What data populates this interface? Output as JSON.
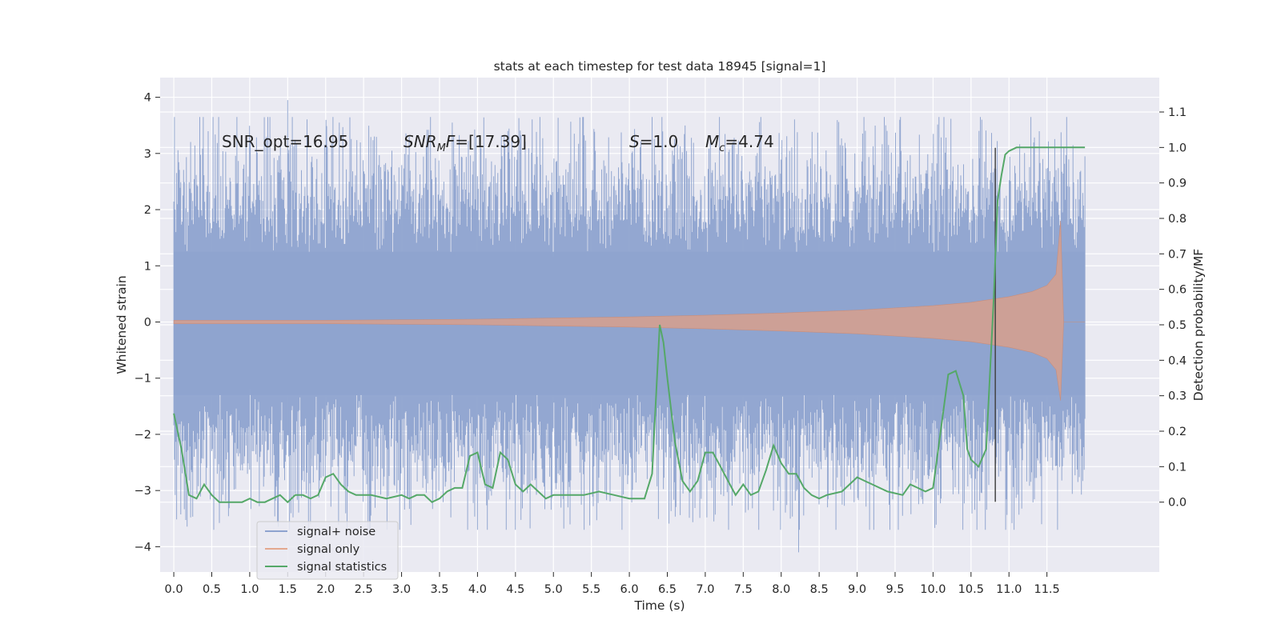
{
  "chart_data": {
    "type": "line",
    "title": "stats at each timestep for test data 18945 [signal=1]",
    "xlabel": "Time (s)",
    "ylabel": "Whitened strain",
    "ylabel_right": "Detection probability/MF",
    "xlim": [
      -0.18,
      12.98
    ],
    "ylim_left": [
      -4.45,
      4.35
    ],
    "ylim_right": [
      -0.197,
      1.197
    ],
    "x_ticks": [
      0.0,
      0.5,
      1.0,
      1.5,
      2.0,
      2.5,
      3.0,
      3.5,
      4.0,
      4.5,
      5.0,
      5.5,
      6.0,
      6.5,
      7.0,
      7.5,
      8.0,
      8.5,
      9.0,
      9.5,
      10.0,
      10.5,
      11.0,
      11.5
    ],
    "x_tick_labels": [
      "0.0",
      "0.5",
      "1.0",
      "1.5",
      "2.0",
      "2.5",
      "3.0",
      "3.5",
      "4.0",
      "4.5",
      "5.0",
      "5.5",
      "6.0",
      "6.5",
      "7.0",
      "7.5",
      "8.0",
      "8.5",
      "9.0",
      "9.5",
      "10.0",
      "10.5",
      "11.0",
      "11.5"
    ],
    "y_left_ticks": [
      -4,
      -3,
      -2,
      -1,
      0,
      1,
      2,
      3,
      4
    ],
    "y_left_tick_labels": [
      "−4",
      "−3",
      "−2",
      "−1",
      "0",
      "1",
      "2",
      "3",
      "4"
    ],
    "y_right_ticks": [
      0.0,
      0.1,
      0.2,
      0.3,
      0.4,
      0.5,
      0.6,
      0.7,
      0.8,
      0.9,
      1.0,
      1.1
    ],
    "y_right_tick_labels": [
      "0.0",
      "0.1",
      "0.2",
      "0.3",
      "0.4",
      "0.5",
      "0.6",
      "0.7",
      "0.8",
      "0.9",
      "1.0",
      "1.1"
    ],
    "grid": true,
    "legend_position": "lower-left",
    "annotations": [
      {
        "text": "SNR_opt=16.95",
        "x": 0.2,
        "y": 3.1
      },
      {
        "text": "SNR_MF=[17.39]",
        "x": 2.6,
        "y": 3.1
      },
      {
        "text": "S=1.0",
        "x": 5.6,
        "y": 3.1
      },
      {
        "text": "M_c=4.74",
        "x": 6.6,
        "y": 3.1
      }
    ],
    "vline": {
      "x": 10.82,
      "y_range": [
        -3.2,
        3.1
      ],
      "color": "#444444"
    },
    "series": [
      {
        "name": "signal+ noise",
        "axis": "left",
        "color": "#8ea3cf",
        "description": "whitened noise, ~1.2 sigma, extremes about -4.1 to 3.95",
        "x_range": [
          0.0,
          12.0
        ],
        "envelope_peak": 3.95,
        "envelope_trough": -4.1
      },
      {
        "name": "signal only",
        "axis": "left",
        "color": "#d4a08f",
        "envelope": {
          "x": [
            0.0,
            2.0,
            3.0,
            4.0,
            5.0,
            6.0,
            7.0,
            8.0,
            9.0,
            10.0,
            10.5,
            11.0,
            11.3,
            11.5,
            11.62,
            11.68,
            11.72,
            12.0
          ],
          "y": [
            0.03,
            0.03,
            0.04,
            0.05,
            0.07,
            0.09,
            0.12,
            0.16,
            0.21,
            0.29,
            0.35,
            0.45,
            0.54,
            0.65,
            0.85,
            1.8,
            0.0,
            0.0
          ]
        }
      },
      {
        "name": "signal statistics",
        "axis": "right",
        "color": "#55a868",
        "x": [
          0.0,
          0.1,
          0.2,
          0.3,
          0.4,
          0.5,
          0.6,
          0.8,
          0.9,
          1.0,
          1.1,
          1.2,
          1.3,
          1.4,
          1.5,
          1.6,
          1.7,
          1.8,
          1.9,
          2.0,
          2.1,
          2.2,
          2.3,
          2.4,
          2.5,
          2.6,
          2.8,
          3.0,
          3.1,
          3.2,
          3.3,
          3.4,
          3.5,
          3.6,
          3.7,
          3.8,
          3.9,
          4.0,
          4.1,
          4.2,
          4.3,
          4.4,
          4.5,
          4.6,
          4.7,
          4.8,
          4.9,
          5.0,
          5.2,
          5.4,
          5.6,
          5.8,
          6.0,
          6.2,
          6.3,
          6.4,
          6.45,
          6.5,
          6.6,
          6.7,
          6.8,
          6.9,
          7.0,
          7.1,
          7.2,
          7.3,
          7.4,
          7.5,
          7.6,
          7.7,
          7.8,
          7.9,
          8.0,
          8.1,
          8.2,
          8.3,
          8.4,
          8.5,
          8.6,
          8.8,
          9.0,
          9.1,
          9.2,
          9.4,
          9.6,
          9.7,
          9.8,
          9.9,
          10.0,
          10.1,
          10.2,
          10.3,
          10.4,
          10.45,
          10.5,
          10.6,
          10.7,
          10.8,
          10.85,
          10.9,
          10.95,
          11.0,
          11.1,
          11.3,
          11.6,
          12.0
        ],
        "y": [
          0.25,
          0.15,
          0.02,
          0.01,
          0.05,
          0.02,
          0.0,
          0.0,
          0.0,
          0.01,
          0.0,
          0.0,
          0.01,
          0.02,
          0.0,
          0.02,
          0.02,
          0.01,
          0.02,
          0.07,
          0.08,
          0.05,
          0.03,
          0.02,
          0.02,
          0.02,
          0.01,
          0.02,
          0.01,
          0.02,
          0.02,
          0.0,
          0.01,
          0.03,
          0.04,
          0.04,
          0.13,
          0.14,
          0.05,
          0.04,
          0.14,
          0.12,
          0.05,
          0.03,
          0.05,
          0.03,
          0.01,
          0.02,
          0.02,
          0.02,
          0.03,
          0.02,
          0.01,
          0.01,
          0.08,
          0.5,
          0.45,
          0.35,
          0.17,
          0.06,
          0.03,
          0.06,
          0.14,
          0.14,
          0.1,
          0.06,
          0.02,
          0.05,
          0.02,
          0.03,
          0.09,
          0.16,
          0.11,
          0.08,
          0.08,
          0.04,
          0.02,
          0.01,
          0.02,
          0.03,
          0.07,
          0.06,
          0.05,
          0.03,
          0.02,
          0.05,
          0.04,
          0.03,
          0.04,
          0.2,
          0.36,
          0.37,
          0.3,
          0.15,
          0.12,
          0.1,
          0.15,
          0.58,
          0.85,
          0.92,
          0.98,
          0.99,
          1.0,
          1.0,
          1.0,
          1.0
        ]
      }
    ]
  }
}
